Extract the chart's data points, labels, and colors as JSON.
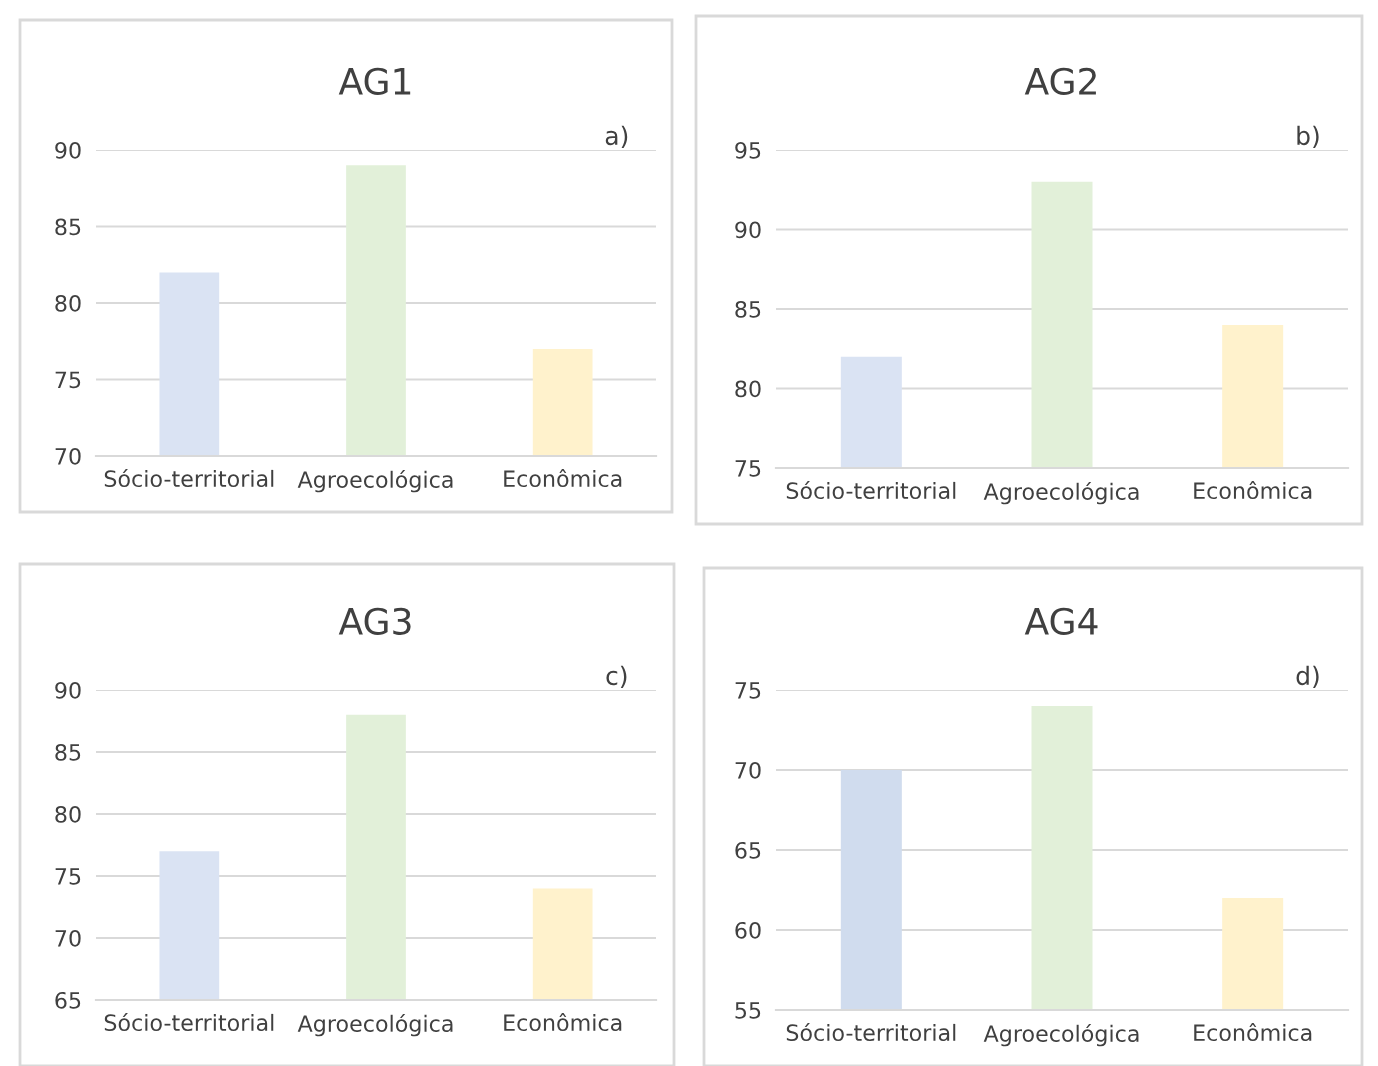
{
  "chart_data": [
    {
      "type": "bar",
      "title": "AG1",
      "annotations": [
        "a)"
      ],
      "categories": [
        "Sócio-territorial",
        "Agroecológica",
        "Econômica"
      ],
      "values": [
        82,
        89,
        77
      ],
      "colors": [
        "#dae3f3",
        "#e2f0d9",
        "#fff2cc"
      ],
      "ylim": [
        70,
        90
      ],
      "yticks": [
        70,
        75,
        80,
        85,
        90
      ],
      "grid": "y",
      "legend": false
    },
    {
      "type": "bar",
      "title": "AG2",
      "annotations": [
        "b)"
      ],
      "categories": [
        "Sócio-territorial",
        "Agroecológica",
        "Econômica"
      ],
      "values": [
        82,
        93,
        84
      ],
      "colors": [
        "#dae3f3",
        "#e2f0d9",
        "#fff2cc"
      ],
      "ylim": [
        75,
        95
      ],
      "yticks": [
        75,
        80,
        85,
        90,
        95
      ],
      "grid": "y",
      "legend": false
    },
    {
      "type": "bar",
      "title": "AG3",
      "annotations": [
        "c)"
      ],
      "categories": [
        "Sócio-territorial",
        "Agroecológica",
        "Econômica"
      ],
      "values": [
        77,
        88,
        74
      ],
      "colors": [
        "#dae3f3",
        "#e2f0d9",
        "#fff2cc"
      ],
      "ylim": [
        65,
        90
      ],
      "yticks": [
        65,
        70,
        75,
        80,
        85,
        90
      ],
      "grid": "y",
      "legend": false
    },
    {
      "type": "bar",
      "title": "AG4",
      "annotations": [
        "d)"
      ],
      "categories": [
        "Sócio-territorial",
        "Agroecológica",
        "Econômica"
      ],
      "values": [
        70,
        74,
        62
      ],
      "colors": [
        "#d0dcee",
        "#e2f0d9",
        "#fff2cc"
      ],
      "ylim": [
        55,
        75
      ],
      "yticks": [
        55,
        60,
        65,
        70,
        75
      ],
      "grid": "y",
      "legend": false
    }
  ]
}
